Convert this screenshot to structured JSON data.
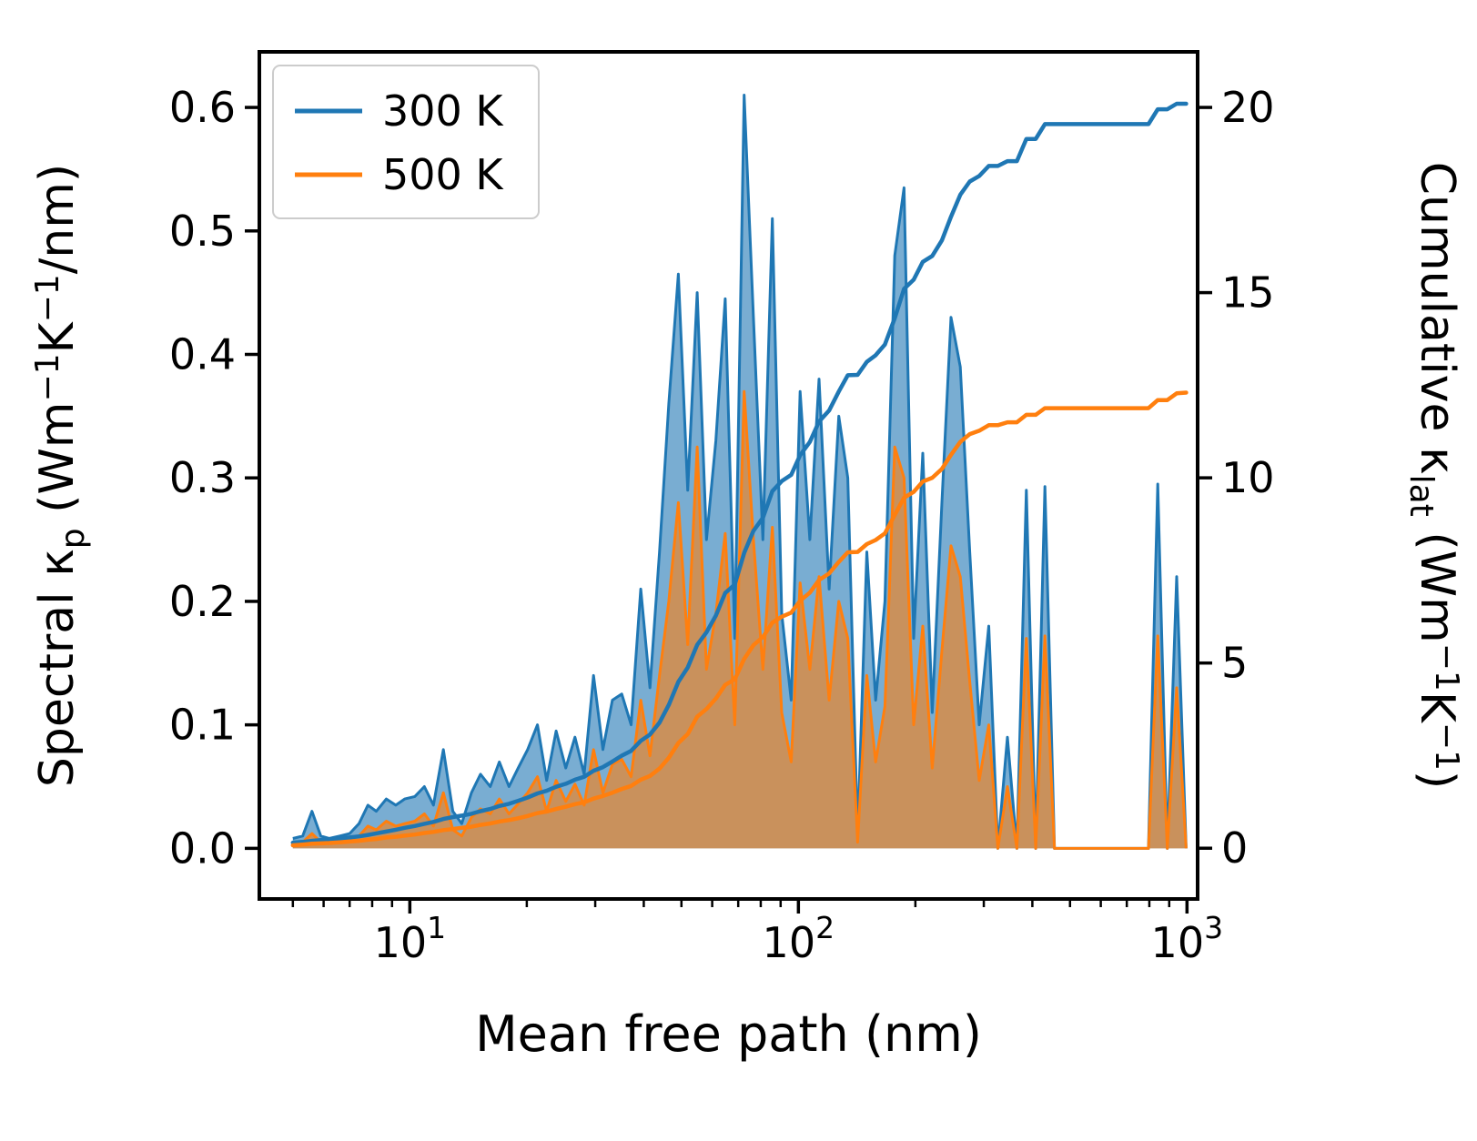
{
  "figure": {
    "background": "#ffffff"
  },
  "chart_data": {
    "type": "area",
    "title": "",
    "xlabel_rich": [
      {
        "t": "Mean free path (nm)"
      }
    ],
    "x_scale": "log",
    "x_range": [
      4.1,
      1065
    ],
    "x_ticks": [
      {
        "v": 10,
        "base": "10",
        "exp": "1"
      },
      {
        "v": 100,
        "base": "10",
        "exp": "2"
      },
      {
        "v": 1000,
        "base": "10",
        "exp": "3"
      }
    ],
    "x_minor_ticks": [
      5,
      6,
      7,
      8,
      9,
      20,
      30,
      40,
      50,
      60,
      70,
      80,
      90,
      200,
      300,
      400,
      500,
      600,
      700,
      800,
      900
    ],
    "left_axis": {
      "label_rich": [
        {
          "t": "Spectral κ"
        },
        {
          "t": "p",
          "m": "sub"
        },
        {
          "t": " (Wm"
        },
        {
          "t": "−1",
          "m": "sup"
        },
        {
          "t": "K"
        },
        {
          "t": "−1",
          "m": "sup"
        },
        {
          "t": "/nm)"
        }
      ],
      "range": [
        -0.041,
        0.645
      ],
      "ticks": [
        {
          "v": 0.0,
          "label": "0.0"
        },
        {
          "v": 0.1,
          "label": "0.1"
        },
        {
          "v": 0.2,
          "label": "0.2"
        },
        {
          "v": 0.3,
          "label": "0.3"
        },
        {
          "v": 0.4,
          "label": "0.4"
        },
        {
          "v": 0.5,
          "label": "0.5"
        },
        {
          "v": 0.6,
          "label": "0.6"
        }
      ]
    },
    "right_axis": {
      "label_rich": [
        {
          "t": "Cumulative κ"
        },
        {
          "t": "lat",
          "m": "sub"
        },
        {
          "t": " (Wm"
        },
        {
          "t": "−1",
          "m": "sup"
        },
        {
          "t": "K"
        },
        {
          "t": "−1",
          "m": "sup"
        },
        {
          "t": ")"
        }
      ],
      "range": [
        -1.37,
        21.5
      ],
      "ticks": [
        {
          "v": 0,
          "label": "0"
        },
        {
          "v": 5,
          "label": "5"
        },
        {
          "v": 10,
          "label": "10"
        },
        {
          "v": 15,
          "label": "15"
        },
        {
          "v": 20,
          "label": "20"
        }
      ]
    },
    "legend": {
      "position": "upper left",
      "entries": [
        {
          "label": "300 K",
          "color": "#1f77b4"
        },
        {
          "label": "500 K",
          "color": "#ff7f0e"
        }
      ]
    },
    "colors": {
      "300K": "#1f77b4",
      "500K": "#ff7f0e"
    },
    "x": [
      5.0,
      5.3,
      5.6,
      5.9,
      6.2,
      6.6,
      7.0,
      7.4,
      7.8,
      8.2,
      8.7,
      9.2,
      9.7,
      10.3,
      10.9,
      11.5,
      12.2,
      12.9,
      13.6,
      14.4,
      15.2,
      16.1,
      17.0,
      18.0,
      19.0,
      20.1,
      21.3,
      22.5,
      23.8,
      25.2,
      26.6,
      28.1,
      29.7,
      31.4,
      33.2,
      35.1,
      37.1,
      39.3,
      41.5,
      43.9,
      46.4,
      49.1,
      51.9,
      54.9,
      58.0,
      61.3,
      64.8,
      68.6,
      72.5,
      76.6,
      81.0,
      85.7,
      90.6,
      95.8,
      101,
      107,
      113,
      120,
      127,
      134,
      142,
      150,
      158,
      167,
      177,
      187,
      198,
      209,
      221,
      234,
      247,
      261,
      276,
      292,
      309,
      326,
      345,
      365,
      386,
      408,
      431,
      456,
      482,
      510,
      539,
      570,
      602,
      637,
      673,
      712,
      753,
      796,
      841,
      890,
      941,
      995
    ],
    "series": [
      {
        "name": "spectral-300K",
        "legend": "300 K",
        "axis": "left",
        "style": "area",
        "color": "#1f77b4",
        "fill_opacity": 0.6,
        "values": [
          0.008,
          0.01,
          0.03,
          0.01,
          0.008,
          0.01,
          0.012,
          0.02,
          0.035,
          0.03,
          0.04,
          0.035,
          0.04,
          0.042,
          0.05,
          0.035,
          0.08,
          0.03,
          0.02,
          0.045,
          0.06,
          0.05,
          0.07,
          0.05,
          0.065,
          0.08,
          0.1,
          0.055,
          0.095,
          0.065,
          0.09,
          0.06,
          0.14,
          0.08,
          0.12,
          0.125,
          0.1,
          0.21,
          0.13,
          0.24,
          0.36,
          0.465,
          0.29,
          0.45,
          0.25,
          0.33,
          0.445,
          0.17,
          0.61,
          0.43,
          0.25,
          0.51,
          0.19,
          0.12,
          0.37,
          0.25,
          0.38,
          0.21,
          0.35,
          0.3,
          0.01,
          0.24,
          0.12,
          0.2,
          0.48,
          0.535,
          0.17,
          0.32,
          0.11,
          0.28,
          0.43,
          0.39,
          0.24,
          0.1,
          0.18,
          0.0,
          0.09,
          0.0,
          0.29,
          0.0,
          0.293,
          0.0,
          0.0,
          0.0,
          0.0,
          0.0,
          0.0,
          0.0,
          0.0,
          0.0,
          0.0,
          0.0,
          0.295,
          0.0,
          0.22,
          0.0
        ]
      },
      {
        "name": "spectral-500K",
        "legend": "500 K",
        "axis": "left",
        "style": "area",
        "color": "#ff7f0e",
        "fill_opacity": 0.6,
        "values": [
          0.004,
          0.005,
          0.012,
          0.005,
          0.004,
          0.006,
          0.007,
          0.01,
          0.018,
          0.015,
          0.022,
          0.018,
          0.02,
          0.022,
          0.028,
          0.018,
          0.045,
          0.015,
          0.01,
          0.025,
          0.032,
          0.028,
          0.04,
          0.028,
          0.036,
          0.045,
          0.058,
          0.03,
          0.055,
          0.038,
          0.052,
          0.035,
          0.08,
          0.045,
          0.068,
          0.072,
          0.058,
          0.12,
          0.075,
          0.14,
          0.2,
          0.28,
          0.165,
          0.325,
          0.145,
          0.19,
          0.255,
          0.1,
          0.37,
          0.25,
          0.145,
          0.26,
          0.11,
          0.07,
          0.215,
          0.145,
          0.22,
          0.12,
          0.2,
          0.17,
          0.005,
          0.14,
          0.07,
          0.115,
          0.325,
          0.3,
          0.1,
          0.18,
          0.065,
          0.16,
          0.245,
          0.22,
          0.135,
          0.055,
          0.1,
          0.0,
          0.05,
          0.0,
          0.17,
          0.0,
          0.172,
          0.0,
          0.0,
          0.0,
          0.0,
          0.0,
          0.0,
          0.0,
          0.0,
          0.0,
          0.0,
          0.0,
          0.172,
          0.0,
          0.13,
          0.0
        ]
      },
      {
        "name": "cumulative-300K",
        "legend": "300 K",
        "axis": "right",
        "style": "line",
        "color": "#1f77b4",
        "values": [
          0.15,
          0.17,
          0.2,
          0.22,
          0.24,
          0.26,
          0.29,
          0.32,
          0.36,
          0.4,
          0.45,
          0.5,
          0.55,
          0.6,
          0.66,
          0.71,
          0.79,
          0.84,
          0.88,
          0.93,
          1.0,
          1.06,
          1.14,
          1.2,
          1.28,
          1.37,
          1.48,
          1.55,
          1.66,
          1.74,
          1.85,
          1.93,
          2.09,
          2.19,
          2.34,
          2.5,
          2.63,
          2.9,
          3.07,
          3.39,
          3.87,
          4.49,
          4.88,
          5.49,
          5.83,
          6.28,
          6.89,
          7.12,
          7.97,
          8.57,
          8.92,
          9.64,
          9.91,
          10.08,
          10.61,
          10.97,
          11.52,
          11.82,
          12.33,
          12.77,
          12.78,
          13.13,
          13.31,
          13.6,
          14.31,
          15.1,
          15.35,
          15.83,
          15.99,
          16.41,
          17.05,
          17.64,
          18.0,
          18.15,
          18.42,
          18.42,
          18.55,
          18.55,
          19.15,
          19.15,
          19.55,
          19.55,
          19.55,
          19.55,
          19.55,
          19.55,
          19.55,
          19.55,
          19.55,
          19.55,
          19.55,
          19.55,
          19.95,
          19.95,
          20.1,
          20.1
        ]
      },
      {
        "name": "cumulative-500K",
        "legend": "500 K",
        "axis": "right",
        "style": "line",
        "color": "#ff7f0e",
        "values": [
          0.08,
          0.1,
          0.12,
          0.13,
          0.14,
          0.16,
          0.18,
          0.2,
          0.23,
          0.25,
          0.29,
          0.31,
          0.34,
          0.37,
          0.41,
          0.44,
          0.49,
          0.52,
          0.55,
          0.58,
          0.63,
          0.67,
          0.72,
          0.76,
          0.81,
          0.87,
          0.95,
          0.99,
          1.06,
          1.12,
          1.19,
          1.24,
          1.34,
          1.41,
          1.5,
          1.6,
          1.68,
          1.85,
          1.95,
          2.15,
          2.44,
          2.84,
          3.08,
          3.55,
          3.76,
          4.04,
          4.41,
          4.56,
          5.11,
          5.48,
          5.7,
          6.09,
          6.25,
          6.36,
          6.68,
          6.9,
          7.24,
          7.42,
          7.73,
          7.99,
          8.0,
          8.21,
          8.32,
          8.5,
          9.0,
          9.46,
          9.62,
          9.9,
          10.0,
          10.24,
          10.62,
          10.97,
          11.18,
          11.27,
          11.42,
          11.42,
          11.5,
          11.5,
          11.7,
          11.7,
          11.88,
          11.88,
          11.88,
          11.88,
          11.88,
          11.88,
          11.88,
          11.88,
          11.88,
          11.88,
          11.88,
          11.88,
          12.1,
          12.1,
          12.28,
          12.3
        ]
      }
    ]
  }
}
